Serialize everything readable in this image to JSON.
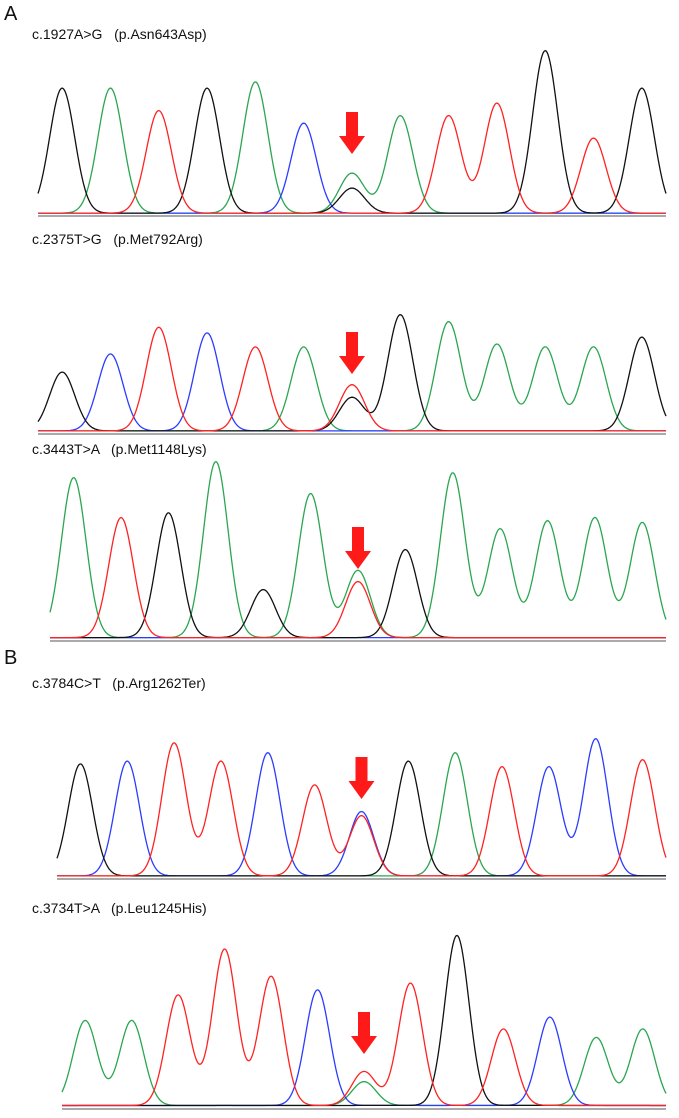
{
  "panels": [
    {
      "letter": "A"
    },
    {
      "letter": "B"
    }
  ],
  "colors": {
    "A": "#2aa650",
    "C": "#2b3cff",
    "G": "#111111",
    "T": "#ff2222",
    "arrow": "#ff1a1a"
  },
  "tracks": [
    {
      "label": "c.1927A>G   (p.Asn643Asp)",
      "peaks": [
        [
          "G",
          1.0
        ],
        [
          "A",
          1.0
        ],
        [
          "T",
          0.82
        ],
        [
          "G",
          1.0
        ],
        [
          "A",
          1.05
        ],
        [
          "C",
          0.72
        ],
        [
          "A",
          0.32,
          "G",
          0.2
        ],
        [
          "A",
          0.78
        ],
        [
          "T",
          0.78
        ],
        [
          "T",
          0.88
        ],
        [
          "G",
          1.3
        ],
        [
          "T",
          0.6
        ],
        [
          "G",
          1.0
        ]
      ],
      "variant_index": 6
    },
    {
      "label": "c.2375T>G   (p.Met792Arg)",
      "peaks": [
        [
          "G",
          0.42
        ],
        [
          "C",
          0.55
        ],
        [
          "T",
          0.74
        ],
        [
          "C",
          0.7
        ],
        [
          "T",
          0.6
        ],
        [
          "A",
          0.6
        ],
        [
          "T",
          0.33,
          "G",
          0.24
        ],
        [
          "G",
          0.83
        ],
        [
          "A",
          0.78
        ],
        [
          "A",
          0.62
        ],
        [
          "A",
          0.6
        ],
        [
          "A",
          0.6
        ],
        [
          "G",
          0.67
        ]
      ],
      "variant_index": 6
    },
    {
      "label": "c.3443T>A   (p.Met1148Lys)",
      "peaks": [
        [
          "A",
          1.0
        ],
        [
          "T",
          0.75
        ],
        [
          "G",
          0.78
        ],
        [
          "A",
          1.1
        ],
        [
          "G",
          0.3
        ],
        [
          "A",
          0.9
        ],
        [
          "A",
          0.42,
          "T",
          0.35
        ],
        [
          "G",
          0.55
        ],
        [
          "A",
          1.03
        ],
        [
          "A",
          0.68
        ],
        [
          "A",
          0.73
        ],
        [
          "A",
          0.75
        ],
        [
          "A",
          0.72
        ]
      ],
      "variant_index": 6
    },
    {
      "label": "c.3784C>T   (p.Arg1262Ter)",
      "peaks": [
        [
          "G",
          0.8
        ],
        [
          "C",
          0.82
        ],
        [
          "T",
          0.95
        ],
        [
          "T",
          0.82
        ],
        [
          "C",
          0.88
        ],
        [
          "T",
          0.65
        ],
        [
          "C",
          0.46,
          "T",
          0.43
        ],
        [
          "G",
          0.82
        ],
        [
          "A",
          0.88
        ],
        [
          "T",
          0.78
        ],
        [
          "C",
          0.78
        ],
        [
          "C",
          0.98
        ],
        [
          "T",
          0.83
        ]
      ],
      "variant_index": 6
    },
    {
      "label": "c.3734T>A   (p.Leu1245His)",
      "peaks": [
        [
          "A",
          0.5
        ],
        [
          "A",
          0.5
        ],
        [
          "T",
          0.65
        ],
        [
          "T",
          0.92
        ],
        [
          "T",
          0.76
        ],
        [
          "C",
          0.68
        ],
        [
          "T",
          0.2,
          "A",
          0.14
        ],
        [
          "T",
          0.72
        ],
        [
          "G",
          1.0
        ],
        [
          "T",
          0.45
        ],
        [
          "C",
          0.52
        ],
        [
          "A",
          0.4
        ],
        [
          "A",
          0.45
        ]
      ],
      "variant_index": 6
    }
  ]
}
